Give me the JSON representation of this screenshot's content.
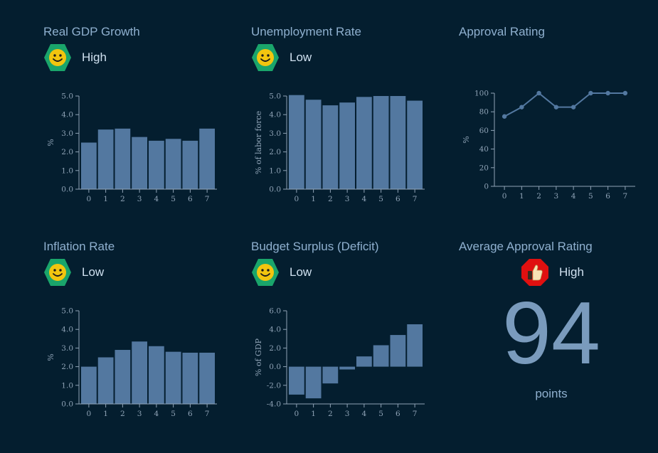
{
  "colors": {
    "background": "#041e2f",
    "bar": "#5378a0",
    "axis": "#8fa3b6",
    "good_badge": "#1aa56b",
    "face": "#f2c50f",
    "alert_badge": "#e01010"
  },
  "panels": [
    {
      "id": "gdp",
      "title": "Real GDP Growth",
      "status": "High",
      "icon": "smiley-icon"
    },
    {
      "id": "unemployment",
      "title": "Unemployment Rate",
      "status": "Low",
      "icon": "smiley-icon"
    },
    {
      "id": "approval",
      "title": "Approval Rating",
      "status": "",
      "icon": ""
    },
    {
      "id": "inflation",
      "title": "Inflation Rate",
      "status": "Low",
      "icon": "smiley-icon"
    },
    {
      "id": "budget",
      "title": "Budget Surplus (Deficit)",
      "status": "Low",
      "icon": "smiley-icon"
    }
  ],
  "kpi": {
    "title": "Average Approval Rating",
    "status": "High",
    "icon": "thumbs-up-icon",
    "value": "94",
    "unit": "points"
  },
  "chart_data": [
    {
      "id": "gdp",
      "type": "bar",
      "title": "Real GDP Growth",
      "ylabel": "%",
      "xlabel": "",
      "categories": [
        "0",
        "1",
        "2",
        "3",
        "4",
        "5",
        "6",
        "7"
      ],
      "values": [
        2.5,
        3.2,
        3.25,
        2.8,
        2.6,
        2.7,
        2.6,
        3.25
      ],
      "ylim": [
        0,
        5
      ],
      "yticks": [
        "0.0",
        "1.0",
        "2.0",
        "3.0",
        "4.0",
        "5.0"
      ]
    },
    {
      "id": "unemployment",
      "type": "bar",
      "title": "Unemployment Rate",
      "ylabel": "% of labor force",
      "xlabel": "",
      "categories": [
        "0",
        "1",
        "2",
        "3",
        "4",
        "5",
        "6",
        "7"
      ],
      "values": [
        5.05,
        4.8,
        4.5,
        4.65,
        4.95,
        5.0,
        5.0,
        4.75
      ],
      "ylim": [
        0,
        5
      ],
      "yticks": [
        "0.0",
        "1.0",
        "2.0",
        "3.0",
        "4.0",
        "5.0"
      ]
    },
    {
      "id": "approval",
      "type": "line",
      "title": "Approval Rating",
      "ylabel": "%",
      "xlabel": "",
      "categories": [
        "0",
        "1",
        "2",
        "3",
        "4",
        "5",
        "6",
        "7"
      ],
      "values": [
        75,
        85,
        100,
        85,
        85,
        100,
        100,
        100
      ],
      "ylim": [
        0,
        100
      ],
      "yticks": [
        "0",
        "20",
        "40",
        "60",
        "80",
        "100"
      ]
    },
    {
      "id": "inflation",
      "type": "bar",
      "title": "Inflation Rate",
      "ylabel": "%",
      "xlabel": "",
      "categories": [
        "0",
        "1",
        "2",
        "3",
        "4",
        "5",
        "6",
        "7"
      ],
      "values": [
        2.0,
        2.5,
        2.9,
        3.35,
        3.1,
        2.8,
        2.75,
        2.75
      ],
      "ylim": [
        0,
        5
      ],
      "yticks": [
        "0.0",
        "1.0",
        "2.0",
        "3.0",
        "4.0",
        "5.0"
      ]
    },
    {
      "id": "budget",
      "type": "bar",
      "title": "Budget Surplus (Deficit)",
      "ylabel": "% of GDP",
      "xlabel": "",
      "categories": [
        "0",
        "1",
        "2",
        "3",
        "4",
        "5",
        "6",
        "7"
      ],
      "values": [
        -3.0,
        -3.4,
        -1.8,
        -0.3,
        1.1,
        2.3,
        3.4,
        4.55
      ],
      "ylim": [
        -4,
        6
      ],
      "yticks": [
        "-4.0",
        "-2.0",
        "0.0",
        "2.0",
        "4.0",
        "6.0"
      ]
    }
  ]
}
